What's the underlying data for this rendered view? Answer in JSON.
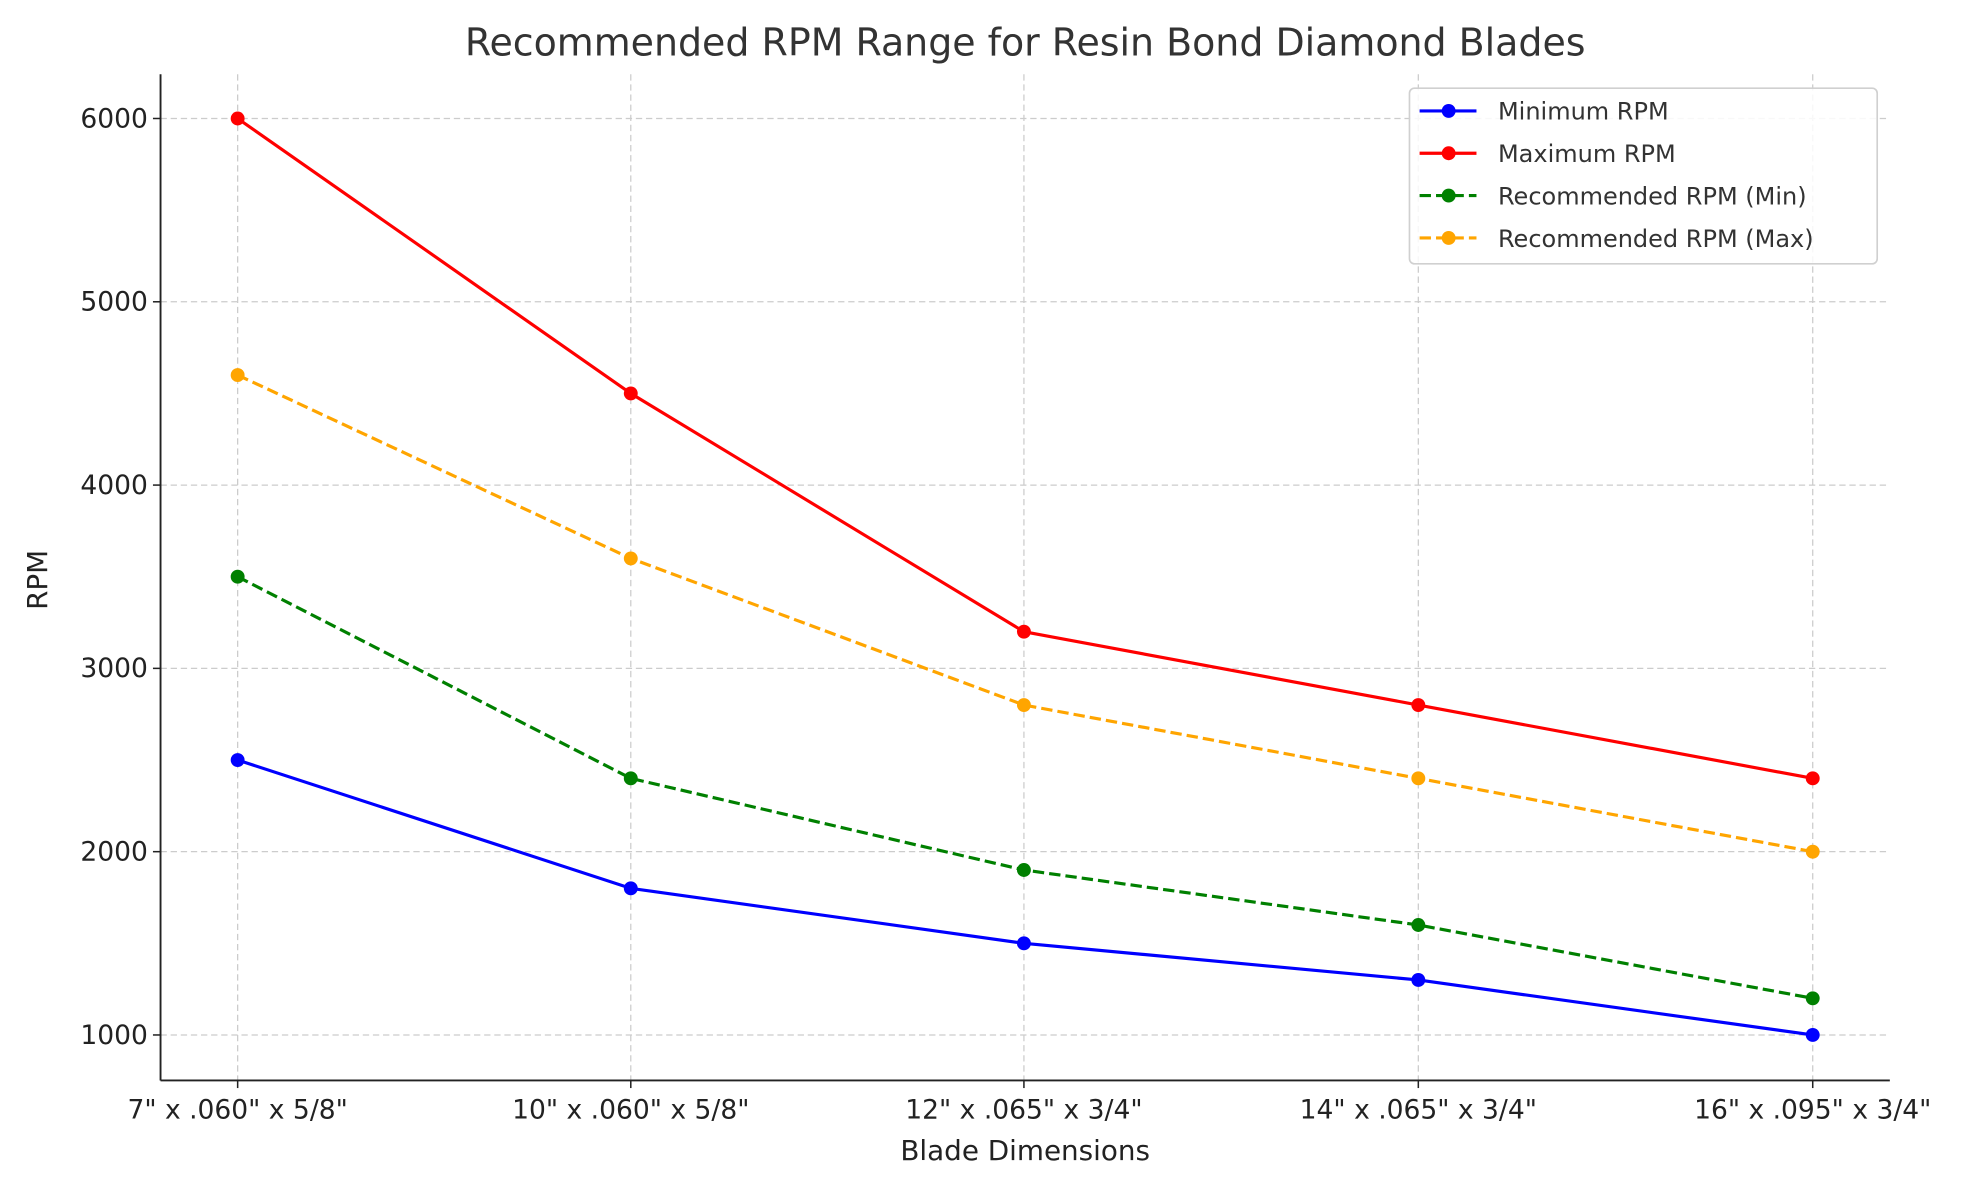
{
  "chart_data": {
    "type": "line",
    "title": "Recommended RPM Range for Resin Bond Diamond Blades",
    "xlabel": "Blade Dimensions",
    "ylabel": "RPM",
    "categories": [
      "7\" x .060\" x 5/8\"",
      "10\" x .060\" x 5/8\"",
      "12\" x .065\" x 3/4\"",
      "14\" x .065\" x 3/4\"",
      "16\" x .095\" x 3/4\""
    ],
    "yticks": [
      1000,
      2000,
      3000,
      4000,
      5000,
      6000
    ],
    "ylim": [
      750,
      6250
    ],
    "grid": true,
    "legend_position": "top-right",
    "series": [
      {
        "name": "Minimum RPM",
        "values": [
          2500,
          1800,
          1500,
          1300,
          1000
        ],
        "color": "#0000ff",
        "dashed": false
      },
      {
        "name": "Maximum RPM",
        "values": [
          6000,
          4500,
          3200,
          2800,
          2400
        ],
        "color": "#ff0000",
        "dashed": false
      },
      {
        "name": "Recommended RPM (Min)",
        "values": [
          3500,
          2400,
          1900,
          1600,
          1200
        ],
        "color": "#008000",
        "dashed": true
      },
      {
        "name": "Recommended RPM (Max)",
        "values": [
          4600,
          3600,
          2800,
          2400,
          2000
        ],
        "color": "#ffa500",
        "dashed": true
      }
    ]
  }
}
